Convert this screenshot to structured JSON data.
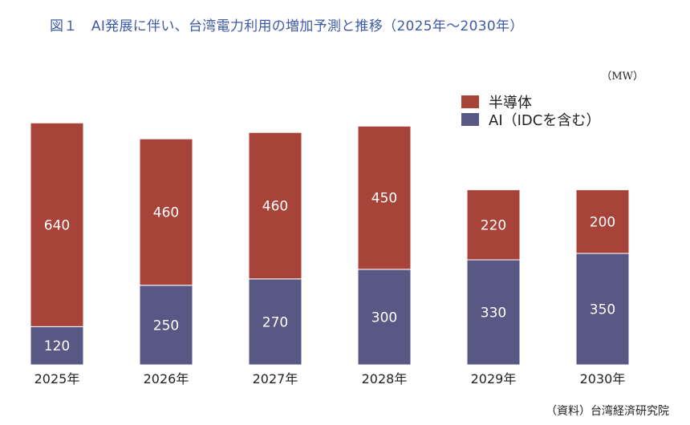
{
  "title": "図１　AI発展に伴い、台湾電力利用の増加予測と推移（2025年〜2030年）",
  "unit": "（MW）",
  "source": "（資料）台湾経済研究院",
  "colors": {
    "semiconductor": "#a8433a",
    "ai": "#595784"
  },
  "chart_data": {
    "type": "bar",
    "stacked": true,
    "categories": [
      "2025年",
      "2026年",
      "2027年",
      "2028年",
      "2029年",
      "2030年"
    ],
    "series": [
      {
        "name": "AI（IDCを含む）",
        "values": [
          120,
          250,
          270,
          300,
          330,
          350
        ]
      },
      {
        "name": "半導体",
        "values": [
          640,
          460,
          460,
          450,
          220,
          200
        ]
      }
    ],
    "legend": [
      "半導体",
      "AI（IDCを含む）"
    ],
    "ylabel": "MW",
    "ylim": [
      0,
      800
    ],
    "grid": false
  }
}
